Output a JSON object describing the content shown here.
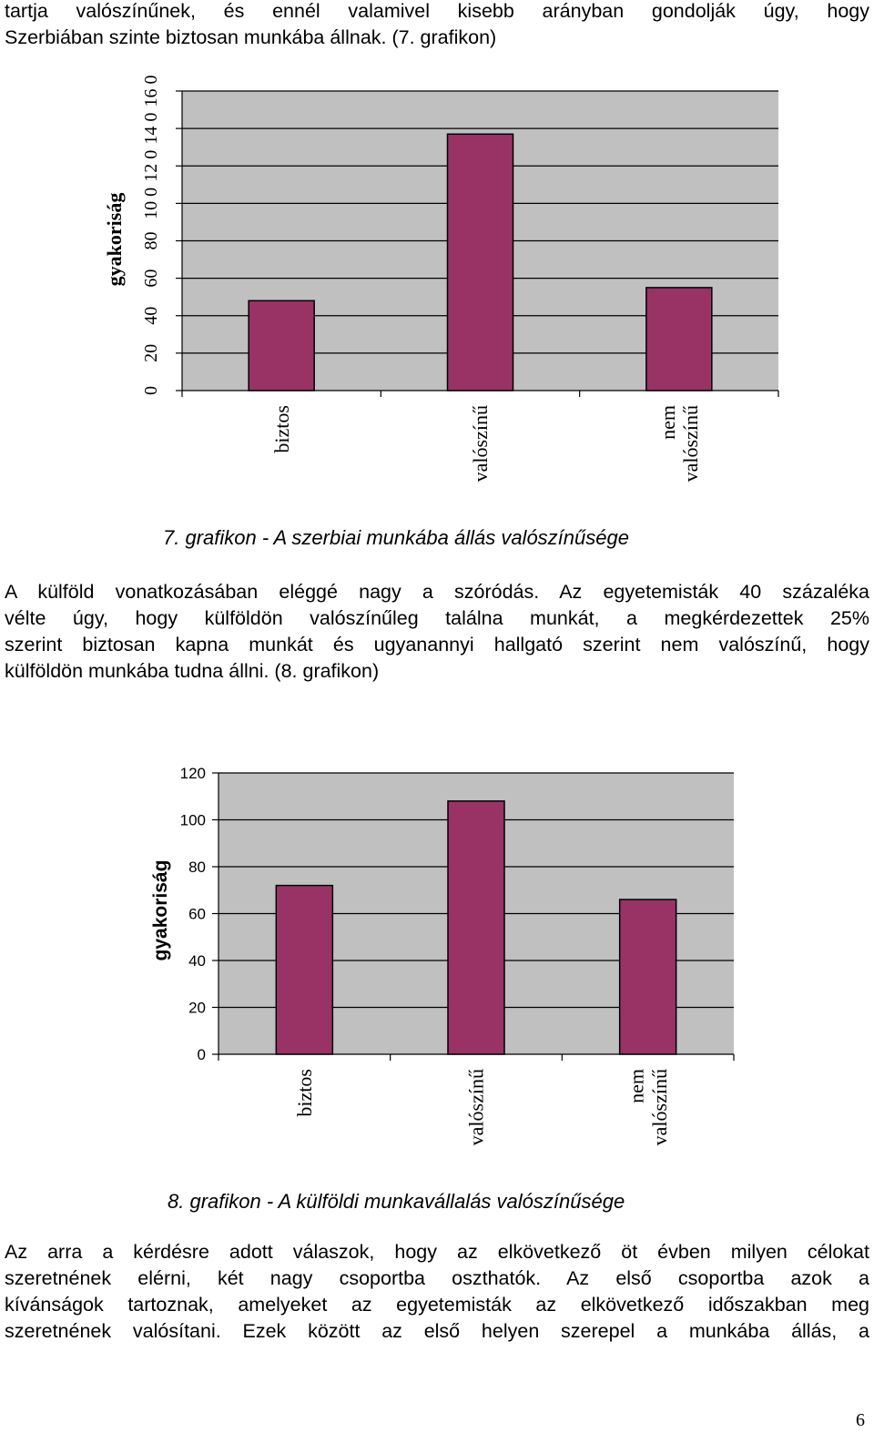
{
  "paragraph_top": {
    "lines": [
      "tartja valószínűnek, és ennél valamivel kisebb arányban gondolják úgy, hogy",
      "Szerbiában szinte biztosan munkába állnak. (7. grafikon)"
    ]
  },
  "chart7_caption": "7. grafikon - A szerbiai munkába állás valószínűsége",
  "paragraph_middle": {
    "lines": [
      "A külföld vonatkozásában eléggé nagy a szóródás. Az egyetemisták 40 százaléka",
      "vélte úgy, hogy külföldön valószínűleg találna munkát, a megkérdezettek 25%",
      "szerint biztosan kapna munkát és ugyanannyi hallgató szerint nem valószínű, hogy",
      "külföldön munkába tudna állni. (8. grafikon)"
    ]
  },
  "chart8_caption": "8. grafikon - A külföldi munkavállalás valószínűsége",
  "paragraph_bottom": {
    "lines": [
      "Az arra a kérdésre adott válaszok, hogy az elkövetkező öt évben milyen célokat",
      "szeretnének elérni, két nagy csoportba oszthatók. Az első csoportba azok a",
      "kívánságok tartoznak, amelyeket az egyetemisták az elkövetkező időszakban meg",
      "szeretnének valósítani. Ezek között az első helyen szerepel a munkába állás, a"
    ]
  },
  "page_number": "6",
  "chart_data": [
    {
      "type": "bar",
      "title": "7. grafikon - A szerbiai munkába állás valószínűsége",
      "ylabel": "gyakoriság",
      "xlabel": "",
      "ylim": [
        0,
        160
      ],
      "yticks": [
        0,
        20,
        40,
        60,
        80,
        100,
        120,
        140,
        160
      ],
      "ytick_labels": [
        "0",
        "20",
        "40",
        "60",
        "80",
        "10 0",
        "12 0",
        "14 0",
        "16 0"
      ],
      "categories": [
        [
          "biztos"
        ],
        [
          "valószínű"
        ],
        [
          "nem",
          "valószínű"
        ]
      ],
      "values": [
        48,
        137,
        55
      ],
      "bar_color": "#993366",
      "plot_bg": "#c0c0c0",
      "grid": true
    },
    {
      "type": "bar",
      "title": "8. grafikon - A külföldi munkavállalás valószínűsége",
      "ylabel": "gyakoriság",
      "xlabel": "",
      "ylim": [
        0,
        120
      ],
      "yticks": [
        0,
        20,
        40,
        60,
        80,
        100,
        120
      ],
      "ytick_labels": [
        "0",
        "20",
        "40",
        "60",
        "80",
        "100",
        "120"
      ],
      "categories": [
        [
          "biztos"
        ],
        [
          "valószínű"
        ],
        [
          "nem",
          "valószínű"
        ]
      ],
      "values": [
        72,
        108,
        66
      ],
      "bar_color": "#993366",
      "plot_bg": "#c0c0c0",
      "grid": true
    }
  ]
}
